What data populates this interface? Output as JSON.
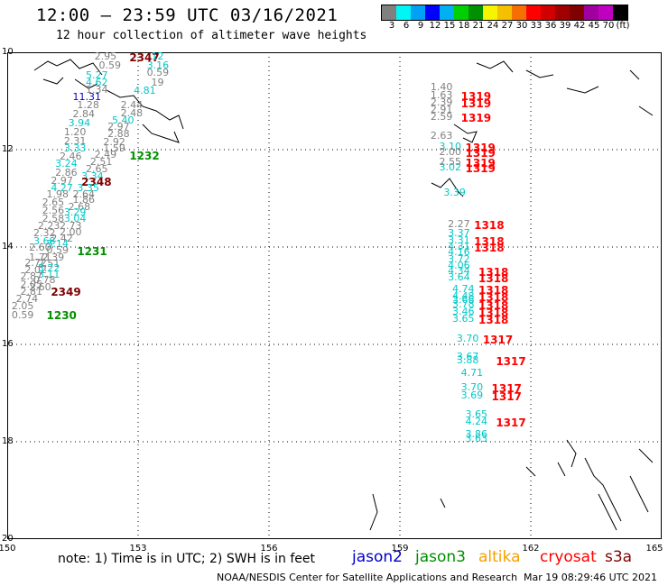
{
  "header": {
    "title": "12:00 – 23:59 UTC 03/16/2021",
    "subtitle": "12 hour collection of altimeter wave heights"
  },
  "colorbar": {
    "colors": [
      "#808080",
      "#00f5f5",
      "#00a0f5",
      "#0000ff",
      "#00b0f0",
      "#00d000",
      "#009000",
      "#f5f500",
      "#f5c000",
      "#f57000",
      "#ff0000",
      "#d00000",
      "#a00000",
      "#800000",
      "#a000a0",
      "#c000c0",
      "#000000"
    ],
    "ticks": [
      "3",
      "6",
      "9",
      "12",
      "15",
      "18",
      "21",
      "24",
      "27",
      "30",
      "33",
      "36",
      "39",
      "42",
      "45",
      "70",
      "(ft)"
    ]
  },
  "axes": {
    "lat_labels": [
      "10",
      "12",
      "14",
      "16",
      "18",
      "20"
    ],
    "lon_labels": [
      "150",
      "153",
      "156",
      "159",
      "162",
      "165"
    ],
    "lat_range": [
      10,
      20
    ],
    "lon_range": [
      150,
      165
    ]
  },
  "notes": {
    "text": "note: 1) Time is in UTC; 2) SWH is in feet"
  },
  "satellites": [
    {
      "name": "jason2",
      "color": "#0000cc"
    },
    {
      "name": "jason3",
      "color": "#009000"
    },
    {
      "name": "altika",
      "color": "#f5a000"
    },
    {
      "name": "cryosat",
      "color": "#ff0000"
    },
    {
      "name": "s3a",
      "color": "#800000"
    }
  ],
  "footer": {
    "credit": "NOAA/NESDIS Center for Satellite Applications and Research",
    "timestamp": "Mar 19 08:29:46 UTC 2021"
  },
  "observations": [
    {
      "text": "2.95",
      "lon": 152.0,
      "lat": 10.1,
      "color": "#808080"
    },
    {
      "text": "2347",
      "lon": 152.8,
      "lat": 10.1,
      "color": "#800000",
      "time": true
    },
    {
      "text": "12",
      "lon": 153.3,
      "lat": 10.1,
      "color": "#00c8c8"
    },
    {
      "text": "0.59",
      "lon": 152.1,
      "lat": 10.27,
      "color": "#808080"
    },
    {
      "text": "3.16",
      "lon": 153.2,
      "lat": 10.27,
      "color": "#00c8c8"
    },
    {
      "text": "0.59",
      "lon": 153.2,
      "lat": 10.42,
      "color": "#808080"
    },
    {
      "text": "5.27",
      "lon": 151.8,
      "lat": 10.48,
      "color": "#00c8c8"
    },
    {
      "text": "4.62",
      "lon": 151.8,
      "lat": 10.63,
      "color": "#00c8c8"
    },
    {
      "text": "19",
      "lon": 153.3,
      "lat": 10.63,
      "color": "#808080"
    },
    {
      "text": "1.34",
      "lon": 151.8,
      "lat": 10.78,
      "color": "#808080"
    },
    {
      "text": "4.81",
      "lon": 152.9,
      "lat": 10.8,
      "color": "#00c8c8"
    },
    {
      "text": "11.31",
      "lon": 151.5,
      "lat": 10.93,
      "color": "#0000cc"
    },
    {
      "text": "2.44",
      "lon": 152.6,
      "lat": 11.1,
      "color": "#808080"
    },
    {
      "text": "1.28",
      "lon": 151.6,
      "lat": 11.1,
      "color": "#808080"
    },
    {
      "text": "2.48",
      "lon": 152.6,
      "lat": 11.25,
      "color": "#808080"
    },
    {
      "text": "2.84",
      "lon": 151.5,
      "lat": 11.28,
      "color": "#808080"
    },
    {
      "text": "5.40",
      "lon": 152.4,
      "lat": 11.4,
      "color": "#00c8c8"
    },
    {
      "text": "3.94",
      "lon": 151.4,
      "lat": 11.47,
      "color": "#00c8c8"
    },
    {
      "text": "2.97",
      "lon": 152.3,
      "lat": 11.53,
      "color": "#808080"
    },
    {
      "text": "1.20",
      "lon": 151.3,
      "lat": 11.65,
      "color": "#808080"
    },
    {
      "text": "2.88",
      "lon": 152.3,
      "lat": 11.68,
      "color": "#808080"
    },
    {
      "text": "2.31",
      "lon": 151.3,
      "lat": 11.83,
      "color": "#808080"
    },
    {
      "text": "2.92",
      "lon": 152.2,
      "lat": 11.85,
      "color": "#808080"
    },
    {
      "text": "3.33",
      "lon": 151.3,
      "lat": 11.98,
      "color": "#00c8c8"
    },
    {
      "text": "1.59",
      "lon": 152.2,
      "lat": 11.98,
      "color": "#808080"
    },
    {
      "text": "2.46",
      "lon": 151.2,
      "lat": 12.15,
      "color": "#808080"
    },
    {
      "text": "2.49",
      "lon": 152.0,
      "lat": 12.12,
      "color": "#808080"
    },
    {
      "text": "1232",
      "lon": 152.8,
      "lat": 12.12,
      "color": "#009000",
      "time": true
    },
    {
      "text": "2.51",
      "lon": 151.9,
      "lat": 12.25,
      "color": "#808080"
    },
    {
      "text": "3.24",
      "lon": 151.1,
      "lat": 12.3,
      "color": "#00c8c8"
    },
    {
      "text": "2.65",
      "lon": 151.8,
      "lat": 12.4,
      "color": "#808080"
    },
    {
      "text": "2.86",
      "lon": 151.1,
      "lat": 12.48,
      "color": "#808080"
    },
    {
      "text": "3.34",
      "lon": 151.7,
      "lat": 12.55,
      "color": "#00c8c8"
    },
    {
      "text": "2.97",
      "lon": 151.0,
      "lat": 12.65,
      "color": "#808080"
    },
    {
      "text": "2348",
      "lon": 151.7,
      "lat": 12.65,
      "color": "#800000",
      "time": true
    },
    {
      "text": "4.27",
      "lon": 151.0,
      "lat": 12.8,
      "color": "#00c8c8"
    },
    {
      "text": "3.35",
      "lon": 151.6,
      "lat": 12.8,
      "color": "#00c8c8"
    },
    {
      "text": "1.98",
      "lon": 150.9,
      "lat": 12.93,
      "color": "#808080"
    },
    {
      "text": "2.64",
      "lon": 151.5,
      "lat": 12.93,
      "color": "#808080"
    },
    {
      "text": "1.86",
      "lon": 151.5,
      "lat": 13.03,
      "color": "#808080"
    },
    {
      "text": "2.65",
      "lon": 150.8,
      "lat": 13.1,
      "color": "#808080"
    },
    {
      "text": "2.68",
      "lon": 151.4,
      "lat": 13.18,
      "color": "#808080"
    },
    {
      "text": "2.56",
      "lon": 150.8,
      "lat": 13.25,
      "color": "#808080"
    },
    {
      "text": "3.29",
      "lon": 151.3,
      "lat": 13.3,
      "color": "#00c8c8"
    },
    {
      "text": "2.58",
      "lon": 150.8,
      "lat": 13.42,
      "color": "#808080"
    },
    {
      "text": "3.04",
      "lon": 151.3,
      "lat": 13.43,
      "color": "#00c8c8"
    },
    {
      "text": "2.23",
      "lon": 150.7,
      "lat": 13.57,
      "color": "#808080"
    },
    {
      "text": "2.73",
      "lon": 151.2,
      "lat": 13.57,
      "color": "#808080"
    },
    {
      "text": "2.00",
      "lon": 151.2,
      "lat": 13.7,
      "color": "#808080"
    },
    {
      "text": "2.32",
      "lon": 150.6,
      "lat": 13.73,
      "color": "#808080"
    },
    {
      "text": "2.42",
      "lon": 151.0,
      "lat": 13.83,
      "color": "#808080"
    },
    {
      "text": "3.68",
      "lon": 150.6,
      "lat": 13.88,
      "color": "#00c8c8"
    },
    {
      "text": "3.14",
      "lon": 150.9,
      "lat": 13.95,
      "color": "#00c8c8"
    },
    {
      "text": "2.60",
      "lon": 150.5,
      "lat": 14.02,
      "color": "#808080"
    },
    {
      "text": "0.59",
      "lon": 150.9,
      "lat": 14.07,
      "color": "#808080"
    },
    {
      "text": "1231",
      "lon": 151.6,
      "lat": 14.07,
      "color": "#009000",
      "time": true
    },
    {
      "text": "1.71",
      "lon": 150.5,
      "lat": 14.22,
      "color": "#808080"
    },
    {
      "text": "2.39",
      "lon": 150.8,
      "lat": 14.22,
      "color": "#808080"
    },
    {
      "text": "2.72",
      "lon": 150.4,
      "lat": 14.33,
      "color": "#808080"
    },
    {
      "text": "2.51",
      "lon": 150.7,
      "lat": 14.35,
      "color": "#808080"
    },
    {
      "text": "2.02",
      "lon": 150.4,
      "lat": 14.48,
      "color": "#808080"
    },
    {
      "text": "3.22",
      "lon": 150.7,
      "lat": 14.45,
      "color": "#00c8c8"
    },
    {
      "text": "3.11",
      "lon": 150.7,
      "lat": 14.58,
      "color": "#00c8c8"
    },
    {
      "text": "2.87",
      "lon": 150.3,
      "lat": 14.62,
      "color": "#808080"
    },
    {
      "text": "0.78",
      "lon": 150.6,
      "lat": 14.68,
      "color": "#808080"
    },
    {
      "text": "2.05",
      "lon": 150.3,
      "lat": 14.78,
      "color": "#808080"
    },
    {
      "text": "2.60",
      "lon": 150.5,
      "lat": 14.83,
      "color": "#808080"
    },
    {
      "text": "2.81",
      "lon": 150.3,
      "lat": 14.93,
      "color": "#808080"
    },
    {
      "text": "2349",
      "lon": 151.0,
      "lat": 14.9,
      "color": "#800000",
      "time": true
    },
    {
      "text": "2.74",
      "lon": 150.2,
      "lat": 15.08,
      "color": "#808080"
    },
    {
      "text": "2.05",
      "lon": 150.1,
      "lat": 15.23,
      "color": "#808080"
    },
    {
      "text": "0.59",
      "lon": 150.1,
      "lat": 15.4,
      "color": "#808080"
    },
    {
      "text": "1230",
      "lon": 150.9,
      "lat": 15.38,
      "color": "#009000",
      "time": true
    },
    {
      "text": "1.40",
      "lon": 159.7,
      "lat": 10.73,
      "color": "#808080"
    },
    {
      "text": "1.63",
      "lon": 159.7,
      "lat": 10.88,
      "color": "#808080"
    },
    {
      "text": "1319",
      "lon": 160.4,
      "lat": 10.88,
      "color": "#ff0000",
      "time": true
    },
    {
      "text": "2.39",
      "lon": 159.7,
      "lat": 11.03,
      "color": "#808080"
    },
    {
      "text": "1319",
      "lon": 160.4,
      "lat": 11.03,
      "color": "#ff0000",
      "time": true
    },
    {
      "text": "2.91",
      "lon": 159.7,
      "lat": 11.18,
      "color": "#808080"
    },
    {
      "text": "2.59",
      "lon": 159.7,
      "lat": 11.33,
      "color": "#808080"
    },
    {
      "text": "1319",
      "lon": 160.4,
      "lat": 11.33,
      "color": "#ff0000",
      "time": true
    },
    {
      "text": "2.63",
      "lon": 159.7,
      "lat": 11.73,
      "color": "#808080"
    },
    {
      "text": "3.10",
      "lon": 159.9,
      "lat": 11.95,
      "color": "#00c8c8"
    },
    {
      "text": "1319",
      "lon": 160.5,
      "lat": 11.95,
      "color": "#ff0000",
      "time": true
    },
    {
      "text": "2.00",
      "lon": 159.9,
      "lat": 12.05,
      "color": "#808080"
    },
    {
      "text": "1319",
      "lon": 160.5,
      "lat": 12.05,
      "color": "#ff0000",
      "time": true
    },
    {
      "text": "2.55",
      "lon": 159.9,
      "lat": 12.25,
      "color": "#808080"
    },
    {
      "text": "1319",
      "lon": 160.5,
      "lat": 12.25,
      "color": "#ff0000",
      "time": true
    },
    {
      "text": "3.02",
      "lon": 159.9,
      "lat": 12.37,
      "color": "#00c8c8"
    },
    {
      "text": "1319",
      "lon": 160.5,
      "lat": 12.37,
      "color": "#ff0000",
      "time": true
    },
    {
      "text": "3.39",
      "lon": 160.0,
      "lat": 12.88,
      "color": "#00c8c8"
    },
    {
      "text": "2.27",
      "lon": 160.1,
      "lat": 13.53,
      "color": "#808080"
    },
    {
      "text": "1318",
      "lon": 160.7,
      "lat": 13.53,
      "color": "#ff0000",
      "time": true
    },
    {
      "text": "3.37",
      "lon": 160.1,
      "lat": 13.73,
      "color": "#00c8c8"
    },
    {
      "text": "3.31",
      "lon": 160.1,
      "lat": 13.87,
      "color": "#00c8c8"
    },
    {
      "text": "1318",
      "lon": 160.7,
      "lat": 13.87,
      "color": "#ff0000",
      "time": true
    },
    {
      "text": "4.31",
      "lon": 160.1,
      "lat": 14.0,
      "color": "#00c8c8"
    },
    {
      "text": "1318",
      "lon": 160.7,
      "lat": 14.0,
      "color": "#ff0000",
      "time": true
    },
    {
      "text": "4.16",
      "lon": 160.1,
      "lat": 14.12,
      "color": "#00c8c8"
    },
    {
      "text": "3.72",
      "lon": 160.1,
      "lat": 14.25,
      "color": "#00c8c8"
    },
    {
      "text": "4.06",
      "lon": 160.1,
      "lat": 14.38,
      "color": "#00c8c8"
    },
    {
      "text": "4.34",
      "lon": 160.1,
      "lat": 14.5,
      "color": "#00c8c8"
    },
    {
      "text": "1318",
      "lon": 160.8,
      "lat": 14.5,
      "color": "#ff0000",
      "time": true
    },
    {
      "text": "3.64",
      "lon": 160.1,
      "lat": 14.63,
      "color": "#00c8c8"
    },
    {
      "text": "1318",
      "lon": 160.8,
      "lat": 14.63,
      "color": "#ff0000",
      "time": true
    },
    {
      "text": "4.74",
      "lon": 160.2,
      "lat": 14.87,
      "color": "#00c8c8"
    },
    {
      "text": "1318",
      "lon": 160.8,
      "lat": 14.87,
      "color": "#ff0000",
      "time": true
    },
    {
      "text": "4.48",
      "lon": 160.2,
      "lat": 15.02,
      "color": "#00c8c8"
    },
    {
      "text": "1318",
      "lon": 160.8,
      "lat": 15.02,
      "color": "#ff0000",
      "time": true
    },
    {
      "text": "3.66",
      "lon": 160.2,
      "lat": 15.1,
      "color": "#00c8c8"
    },
    {
      "text": "3.78",
      "lon": 160.2,
      "lat": 15.18,
      "color": "#00c8c8"
    },
    {
      "text": "1318",
      "lon": 160.8,
      "lat": 15.18,
      "color": "#ff0000",
      "time": true
    },
    {
      "text": "3.46",
      "lon": 160.2,
      "lat": 15.33,
      "color": "#00c8c8"
    },
    {
      "text": "1318",
      "lon": 160.8,
      "lat": 15.33,
      "color": "#ff0000",
      "time": true
    },
    {
      "text": "3.65",
      "lon": 160.2,
      "lat": 15.48,
      "color": "#00c8c8"
    },
    {
      "text": "1318",
      "lon": 160.8,
      "lat": 15.48,
      "color": "#ff0000",
      "time": true
    },
    {
      "text": "3.70",
      "lon": 160.3,
      "lat": 15.88,
      "color": "#00c8c8"
    },
    {
      "text": "1317",
      "lon": 160.9,
      "lat": 15.88,
      "color": "#ff0000",
      "time": true
    },
    {
      "text": "3.67",
      "lon": 160.3,
      "lat": 16.25,
      "color": "#00c8c8"
    },
    {
      "text": "3.88",
      "lon": 160.3,
      "lat": 16.33,
      "color": "#00c8c8"
    },
    {
      "text": "1317",
      "lon": 161.2,
      "lat": 16.33,
      "color": "#ff0000",
      "time": true
    },
    {
      "text": "4.71",
      "lon": 160.4,
      "lat": 16.6,
      "color": "#00c8c8"
    },
    {
      "text": "3.70",
      "lon": 160.4,
      "lat": 16.88,
      "color": "#00c8c8"
    },
    {
      "text": "1317",
      "lon": 161.1,
      "lat": 16.88,
      "color": "#ff0000",
      "time": true
    },
    {
      "text": "3.69",
      "lon": 160.4,
      "lat": 17.05,
      "color": "#00c8c8"
    },
    {
      "text": "1317",
      "lon": 161.1,
      "lat": 17.05,
      "color": "#ff0000",
      "time": true
    },
    {
      "text": "3.65",
      "lon": 160.5,
      "lat": 17.45,
      "color": "#00c8c8"
    },
    {
      "text": "4.24",
      "lon": 160.5,
      "lat": 17.6,
      "color": "#00c8c8"
    },
    {
      "text": "1317",
      "lon": 161.2,
      "lat": 17.6,
      "color": "#ff0000",
      "time": true
    },
    {
      "text": "3.86",
      "lon": 160.5,
      "lat": 17.85,
      "color": "#00c8c8"
    },
    {
      "text": "3.63",
      "lon": 160.5,
      "lat": 17.95,
      "color": "#00c8c8"
    }
  ]
}
